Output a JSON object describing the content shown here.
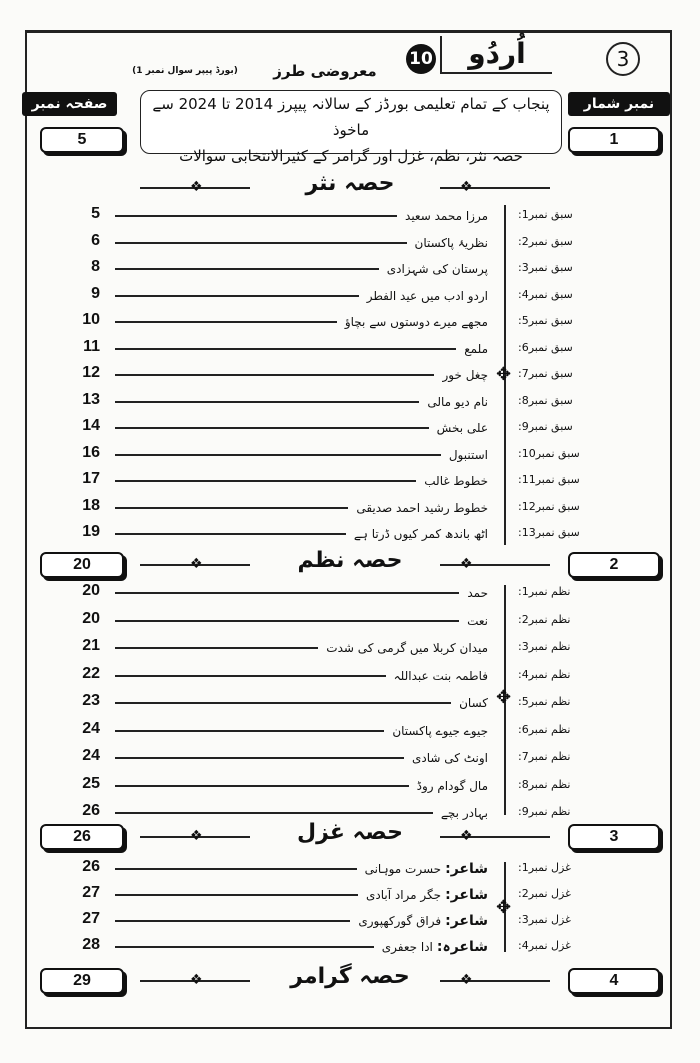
{
  "header": {
    "page_circle": "3",
    "subject": "اُردُو",
    "grade": "10",
    "type": "معروضی طرز",
    "sub_note": "(بورڈ پیپر سوال نمبر 1)",
    "left_tag": "صفحہ نمبر",
    "right_tag": "نمبر شمار",
    "banner_line1": "پنجاب کے تمام تعلیمی بورڈز کے سالانہ پیپرز 2014 تا 2024 سے ماخوذ",
    "banner_line2": "حصہ نثر، نظم، غزل اور گرامر کے کثیرالانتخابی سوالات"
  },
  "sections": [
    {
      "title": "حصہ نثر",
      "serial": "1",
      "page": "5"
    },
    {
      "title": "حصہ نظم",
      "serial": "2",
      "page": "20"
    },
    {
      "title": "حصہ غزل",
      "serial": "3",
      "page": "26"
    },
    {
      "title": "حصہ گرامر",
      "serial": "4",
      "page": "29"
    }
  ],
  "nasr": [
    {
      "label": "سبق نمبر1:",
      "title": "مرزا محمد سعید",
      "page": "5"
    },
    {
      "label": "سبق نمبر2:",
      "title": "نظریۂ پاکستان",
      "page": "6"
    },
    {
      "label": "سبق نمبر3:",
      "title": "پرستان کی شہزادی",
      "page": "8"
    },
    {
      "label": "سبق نمبر4:",
      "title": "اردو ادب میں عید الفطر",
      "page": "9"
    },
    {
      "label": "سبق نمبر5:",
      "title": "مجھے میرے دوستوں سے بچاؤ",
      "page": "10"
    },
    {
      "label": "سبق نمبر6:",
      "title": "ملمع",
      "page": "11"
    },
    {
      "label": "سبق نمبر7:",
      "title": "چغل خور",
      "page": "12"
    },
    {
      "label": "سبق نمبر8:",
      "title": "نام دیو مالی",
      "page": "13"
    },
    {
      "label": "سبق نمبر9:",
      "title": "علی بخش",
      "page": "14"
    },
    {
      "label": "سبق نمبر10:",
      "title": "استنبول",
      "page": "16"
    },
    {
      "label": "سبق نمبر11:",
      "title": "خطوط غالب",
      "page": "17"
    },
    {
      "label": "سبق نمبر12:",
      "title": "خطوط رشید احمد صدیقی",
      "page": "18"
    },
    {
      "label": "سبق نمبر13:",
      "title": "اٹھ باندھ کمر کیوں ڈرتا ہے",
      "page": "19"
    }
  ],
  "nazm": [
    {
      "label": "نظم نمبر1:",
      "title": "حمد",
      "page": "20"
    },
    {
      "label": "نظم نمبر2:",
      "title": "نعت",
      "page": "20"
    },
    {
      "label": "نظم نمبر3:",
      "title": "میدان کربلا میں گرمی کی شدت",
      "page": "21"
    },
    {
      "label": "نظم نمبر4:",
      "title": "فاطمہ بنت عبداللہ",
      "page": "22"
    },
    {
      "label": "نظم نمبر5:",
      "title": "کسان",
      "page": "23"
    },
    {
      "label": "نظم نمبر6:",
      "title": "جیوے جیوے پاکستان",
      "page": "24"
    },
    {
      "label": "نظم نمبر7:",
      "title": "اونٹ کی شادی",
      "page": "24"
    },
    {
      "label": "نظم نمبر8:",
      "title": "مال گودام روڈ",
      "page": "25"
    },
    {
      "label": "نظم نمبر9:",
      "title": "بہادر بچے",
      "page": "26"
    }
  ],
  "ghazal": [
    {
      "label": "غزل نمبر1:",
      "poet_label": "شاعر:",
      "title": "حسرت موہانی",
      "page": "26"
    },
    {
      "label": "غزل نمبر2:",
      "poet_label": "شاعر:",
      "title": "جگر مراد آبادی",
      "page": "27"
    },
    {
      "label": "غزل نمبر3:",
      "poet_label": "شاعر:",
      "title": "فراق گورکھپوری",
      "page": "27"
    },
    {
      "label": "غزل نمبر4:",
      "poet_label": "شاعرہ:",
      "title": "ادا جعفری",
      "page": "28"
    }
  ]
}
